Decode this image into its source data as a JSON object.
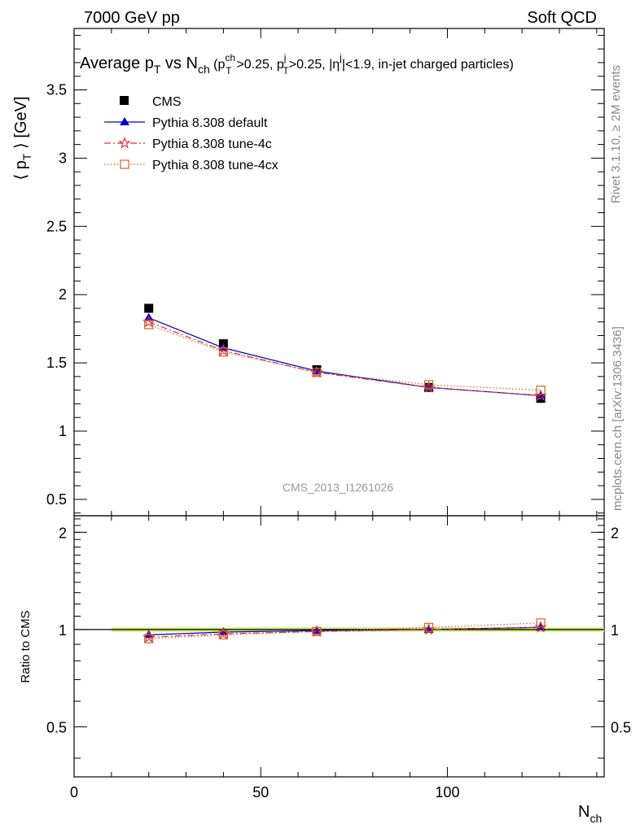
{
  "header": {
    "left": "7000 GeV pp",
    "right": "Soft QCD"
  },
  "side": {
    "rivet": "Rivet 3.1.10, ≥ 2M events",
    "mcplots": "mcplots.cern.ch [arXiv:1306.3436]"
  },
  "chart_data": {
    "type": "line",
    "title_parts": {
      "main": "Average p",
      "main_sub": "T",
      "vs": " vs N",
      "vs_sub": "ch",
      "paren_open": " (p",
      "p1_sup": "ch",
      "p1_sub": "T",
      "p1_tail": ">0.25, p",
      "p2_sup": "j",
      "p2_sub": "T",
      "p2_tail": ">0.25, |η",
      "eta_sup": "j",
      "eta_tail": "|<1.9, in-jet charged particles)"
    },
    "analysis_id": "CMS_2013_I1261026",
    "ylabel_parts": {
      "open": "⟨ p",
      "sub": "T",
      "close": " ⟩ [GeV]"
    },
    "xlabel_parts": {
      "main": "N",
      "sub": "ch"
    },
    "ratio_ylabel": "Ratio to CMS",
    "xlim": [
      0,
      142
    ],
    "ylim": [
      0.38,
      3.95
    ],
    "ratio_ylim": [
      0.35,
      2.25
    ],
    "x_ticks": [
      "0",
      "50",
      "100"
    ],
    "y_ticks": [
      "0.5",
      "1",
      "1.5",
      "2",
      "2.5",
      "3",
      "3.5"
    ],
    "ratio_ticks": [
      "0.5",
      "1",
      "2"
    ],
    "x": [
      20,
      40,
      65,
      95,
      125
    ],
    "series": [
      {
        "name": "CMS",
        "marker": "square-filled",
        "color": "#000000",
        "values": [
          1.9,
          1.64,
          1.45,
          1.32,
          1.24
        ]
      },
      {
        "name": "Pythia 8.308 default",
        "marker": "triangle-filled",
        "color": "#0000cc",
        "line": "solid",
        "values": [
          1.83,
          1.61,
          1.44,
          1.32,
          1.26
        ]
      },
      {
        "name": "Pythia 8.308 tune-4c",
        "marker": "star-open",
        "color": "#dd3333",
        "line": "dashdot",
        "values": [
          1.8,
          1.59,
          1.43,
          1.32,
          1.26
        ]
      },
      {
        "name": "Pythia 8.308 tune-4cx",
        "marker": "square-open",
        "color": "#cc6622",
        "line": "dotted",
        "values": [
          1.78,
          1.58,
          1.43,
          1.34,
          1.3
        ]
      }
    ],
    "ratio_series": [
      {
        "name": "Pythia 8.308 default",
        "values": [
          0.963,
          0.982,
          0.993,
          1.0,
          1.016
        ]
      },
      {
        "name": "Pythia 8.308 tune-4c",
        "values": [
          0.947,
          0.97,
          0.986,
          1.0,
          1.016
        ]
      },
      {
        "name": "Pythia 8.308 tune-4cx",
        "values": [
          0.937,
          0.963,
          0.986,
          1.015,
          1.048
        ]
      }
    ],
    "ratio_band": [
      0.985,
      1.015
    ],
    "colors": {
      "band": "#ccee66"
    }
  }
}
